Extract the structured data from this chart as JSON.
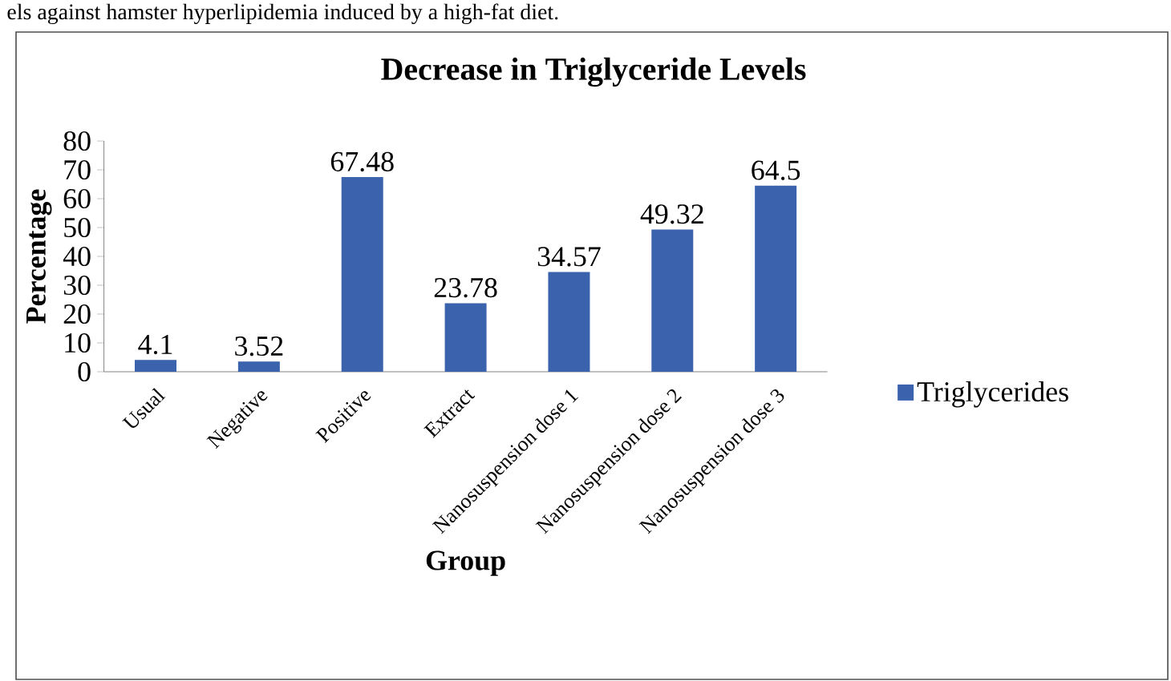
{
  "chart_data": {
    "type": "bar",
    "title": "Decrease in Triglyceride Levels",
    "xlabel": "Group",
    "ylabel": "Percentage",
    "annotations": [
      "els against hamster hyperlipidemia induced by a high-fat diet."
    ],
    "categories": [
      "Usual",
      "Negative",
      "Positive",
      "Extract",
      "Nanosuspension dose 1",
      "Nanosuspension dose 2",
      "Nanosuspension dose 3"
    ],
    "series": [
      {
        "name": "Triglycerides",
        "color": "#3a62ad",
        "values": [
          4.1,
          3.52,
          67.48,
          23.78,
          34.57,
          49.32,
          64.5
        ]
      }
    ],
    "ylim": [
      0,
      80
    ],
    "yticks": [
      0,
      10,
      20,
      30,
      40,
      50,
      60,
      70,
      80
    ],
    "data_labels": true,
    "legend": "right",
    "grid": false
  }
}
